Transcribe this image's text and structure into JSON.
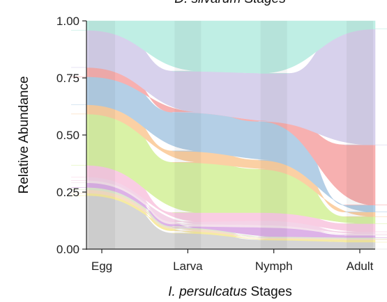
{
  "chart_data": {
    "type": "area",
    "title": "D. silvarum Stages",
    "xlabel": {
      "italic": "I. persulcatus",
      "rest": " Stages"
    },
    "ylabel": "Relative Abundance",
    "categories": [
      "Egg",
      "Larva",
      "Nymph",
      "Adult"
    ],
    "ylim": [
      0,
      1
    ],
    "yticks": [
      "0.00",
      "0.25",
      "0.50",
      "0.75",
      "1.00"
    ],
    "ytick_values": [
      0,
      0.25,
      0.5,
      0.75,
      1.0
    ],
    "layers": [
      {
        "color": "#d6d6d6",
        "values": [
          0.23,
          0.07,
          0.04,
          0.03
        ]
      },
      {
        "color": "#f6eba2",
        "values": [
          0.01,
          0.01,
          0.005,
          0.01
        ]
      },
      {
        "color": "#f7dfc6",
        "values": [
          0.015,
          0.01,
          0.005,
          0.005
        ]
      },
      {
        "color": "#dfe8cf",
        "values": [
          0.01,
          0.005,
          0.005,
          0.005
        ]
      },
      {
        "color": "#ddb2e8",
        "values": [
          0.02,
          0.005,
          0.04,
          0.01
        ]
      },
      {
        "color": "#f4e1ec",
        "values": [
          0.01,
          0.01,
          0.01,
          0.005
        ]
      },
      {
        "color": "#f4d4e8",
        "values": [
          0.015,
          0.01,
          0.02,
          0.01
        ]
      },
      {
        "color": "#f9cde3",
        "values": [
          0.05,
          0.04,
          0.035,
          0.035
        ]
      },
      {
        "color": "#d9f2a6",
        "values": [
          0.22,
          0.22,
          0.19,
          0.03
        ]
      },
      {
        "color": "#fbd0a4",
        "values": [
          0.04,
          0.05,
          0.04,
          0.02
        ]
      },
      {
        "color": "#b4cfe6",
        "values": [
          0.12,
          0.17,
          0.17,
          0.03
        ]
      },
      {
        "color": "#f7b0b0",
        "values": [
          0.04,
          0.0,
          0.0,
          0.26
        ]
      },
      {
        "color": "#d7d1ec",
        "values": [
          0.16,
          0.18,
          0.21,
          0.5
        ]
      },
      {
        "color": "#bfeee4",
        "values": [
          0.04,
          0.22,
          0.23,
          0.035
        ]
      }
    ]
  }
}
